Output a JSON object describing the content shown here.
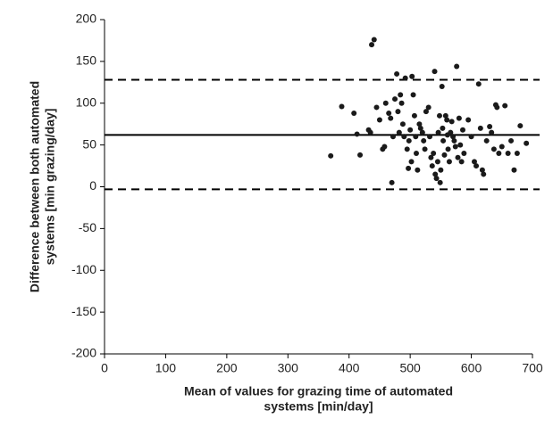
{
  "chart_data": {
    "type": "scatter",
    "xlabel": [
      "Mean of values for grazing time of automated",
      "systems [min/day]"
    ],
    "ylabel": [
      "Difference between both automated",
      "systems [min grazing/day]"
    ],
    "xlim": [
      0,
      700
    ],
    "xticks": [
      0,
      100,
      200,
      300,
      400,
      500,
      600,
      700
    ],
    "ylim": [
      -200,
      200
    ],
    "yticks": [
      -200,
      -150,
      -100,
      -50,
      0,
      50,
      100,
      150,
      200
    ],
    "grid": false,
    "color": "#1a1a1a",
    "hlines": [
      {
        "value": 128,
        "style": "dashed"
      },
      {
        "value": 62,
        "style": "solid"
      },
      {
        "value": -3,
        "style": "dashed"
      }
    ],
    "x": [
      370,
      388,
      408,
      413,
      418,
      432,
      435,
      437,
      441,
      445,
      450,
      455,
      458,
      460,
      465,
      468,
      470,
      472,
      475,
      478,
      480,
      482,
      484,
      486,
      488,
      490,
      492,
      495,
      497,
      498,
      500,
      502,
      503,
      505,
      507,
      509,
      510,
      512,
      515,
      517,
      520,
      522,
      524,
      526,
      530,
      532,
      534,
      536,
      538,
      540,
      541,
      543,
      545,
      546,
      548,
      549,
      550,
      552,
      553,
      554,
      556,
      558,
      560,
      561,
      562,
      564,
      566,
      568,
      570,
      572,
      574,
      576,
      578,
      580,
      582,
      584,
      586,
      588,
      595,
      600,
      605,
      608,
      612,
      615,
      618,
      620,
      625,
      630,
      633,
      637,
      640,
      642,
      645,
      650,
      655,
      660,
      665,
      670,
      675,
      680,
      690
    ],
    "values": [
      37,
      96,
      88,
      63,
      38,
      68,
      65,
      170,
      176,
      95,
      80,
      45,
      48,
      100,
      88,
      82,
      5,
      60,
      105,
      135,
      90,
      65,
      110,
      100,
      75,
      60,
      130,
      45,
      22,
      55,
      68,
      30,
      132,
      110,
      85,
      60,
      40,
      20,
      75,
      70,
      65,
      55,
      45,
      90,
      95,
      60,
      35,
      25,
      40,
      138,
      15,
      10,
      30,
      65,
      85,
      5,
      20,
      120,
      70,
      55,
      38,
      85,
      80,
      62,
      45,
      30,
      65,
      78,
      60,
      55,
      48,
      144,
      35,
      82,
      50,
      30,
      68,
      40,
      80,
      60,
      30,
      25,
      123,
      70,
      20,
      15,
      55,
      72,
      65,
      45,
      98,
      95,
      40,
      48,
      97,
      40,
      55,
      20,
      40,
      73,
      52
    ]
  }
}
